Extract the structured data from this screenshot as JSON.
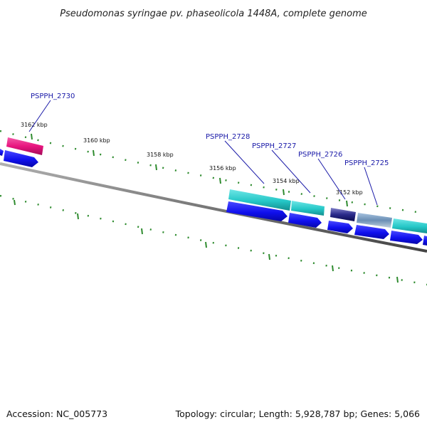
{
  "title": "Pseudomonas syringae pv. phaseolicola 1448A, complete genome",
  "footer": {
    "accession": "Accession: NC_005773",
    "summary": "Topology: circular; Length: 5,928,787 bp; Genes: 5,066"
  },
  "scale_labels": [
    "3162 kbp",
    "3160 kbp",
    "3158 kbp",
    "3156 kbp",
    "3154 kbp",
    "3152 kbp"
  ],
  "gene_labels": [
    "PSPPH_2730",
    "PSPPH_2728",
    "PSPPH_2727",
    "PSPPH_2726",
    "PSPPH_2725"
  ],
  "colors": {
    "backbone": "#777777",
    "tick": "#2e8b2e",
    "label": "#1a1aa8",
    "cds_arrow": "#1010ee",
    "feature_magenta": "#e8157f",
    "feature_cyan": "#25c7c7",
    "feature_navy": "#2a2a8a",
    "feature_slate": "#6a8fb5"
  }
}
